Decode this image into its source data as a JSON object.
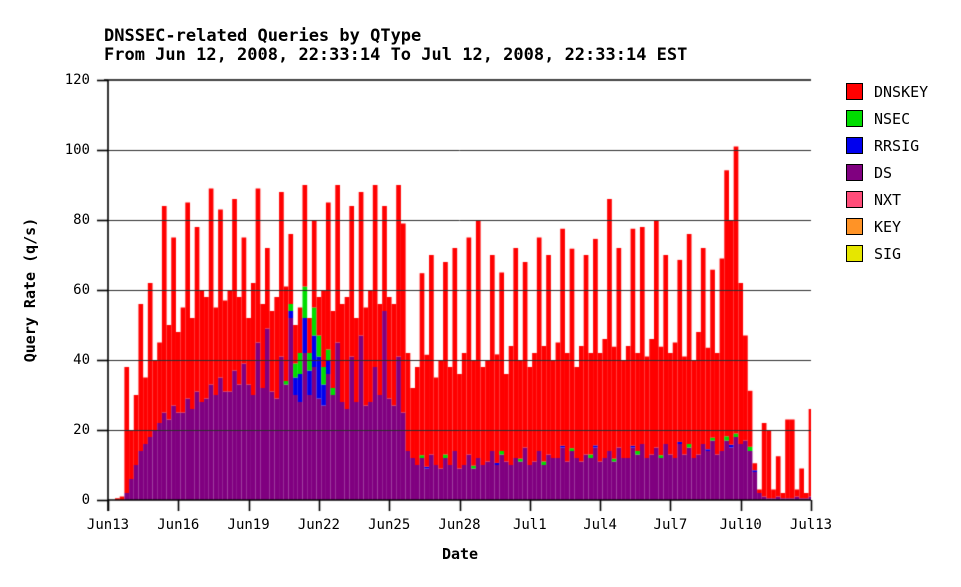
{
  "header": {
    "title": "DNSSEC-related Queries by QType",
    "subtitle": "From Jun 12, 2008, 22:33:14 To Jul 12, 2008, 22:33:14 EST"
  },
  "axes": {
    "x_label": "Date",
    "y_label": "Query Rate (q/s)"
  },
  "legend": {
    "position": "right",
    "items": [
      {
        "label": "DNSKEY",
        "color": "#ff0000"
      },
      {
        "label": "NSEC",
        "color": "#00dd00"
      },
      {
        "label": "RRSIG",
        "color": "#0000ee"
      },
      {
        "label": "DS",
        "color": "#800080"
      },
      {
        "label": "NXT",
        "color": "#ff4d79"
      },
      {
        "label": "KEY",
        "color": "#ff9326"
      },
      {
        "label": "SIG",
        "color": "#e6e600"
      }
    ]
  },
  "colors": {
    "background": "#ffffff",
    "axis": "#000000",
    "grid": "#2e2e2e",
    "text": "#000000"
  },
  "chart_data": {
    "type": "area",
    "stacked": true,
    "title": "DNSSEC-related Queries by QType",
    "subtitle": "From Jun 12, 2008, 22:33:14 To Jul 12, 2008, 22:33:14 EST",
    "xlabel": "Date",
    "ylabel": "Query Rate (q/s)",
    "ylim": [
      0,
      120
    ],
    "yticks": [
      0,
      20,
      40,
      60,
      80,
      100,
      120
    ],
    "grid": "horizontal",
    "legend_position": "right",
    "x_tick_labels": [
      "Jun13",
      "Jun16",
      "Jun19",
      "Jun22",
      "Jun25",
      "Jun28",
      "Jul1",
      "Jul4",
      "Jul7",
      "Jul10",
      "Jul13"
    ],
    "x_range_days": [
      0,
      30
    ],
    "samples_per_day": 5,
    "units": "queries per second",
    "stack_order_bottom_to_top": [
      "DS",
      "RRSIG",
      "NSEC",
      "DNSKEY"
    ],
    "zero_series": [
      "NXT",
      "KEY",
      "SIG"
    ],
    "series": [
      {
        "name": "DS",
        "color": "#800080",
        "values": [
          0,
          0,
          0,
          0,
          2,
          6,
          10,
          14,
          16,
          18,
          20,
          22,
          25,
          23,
          27,
          25,
          25,
          29,
          26,
          31,
          28,
          29,
          33,
          30,
          35,
          31,
          31,
          37,
          33,
          39,
          33,
          30,
          45,
          32,
          49,
          31,
          29,
          41,
          33,
          52,
          30,
          28,
          42,
          30,
          38,
          29,
          27,
          36,
          30,
          45,
          28,
          26,
          41,
          28,
          47,
          27,
          28,
          38,
          30,
          54,
          29,
          27,
          41,
          25,
          14,
          12,
          10,
          12,
          9,
          13,
          10,
          9,
          12,
          10,
          14,
          9,
          10,
          13,
          9,
          12,
          10,
          11,
          14,
          10,
          13,
          11,
          10,
          12,
          11,
          15,
          10,
          11,
          14,
          10,
          13,
          12,
          12,
          15,
          11,
          14,
          12,
          11,
          13,
          12,
          15,
          11,
          12,
          14,
          11,
          15,
          12,
          12,
          15,
          13,
          16,
          12,
          13,
          15,
          12,
          16,
          13,
          12,
          16,
          13,
          15,
          12,
          13,
          16,
          14,
          17,
          13,
          14,
          17,
          15,
          18,
          16,
          17,
          14,
          8,
          2,
          1,
          0.5,
          0.5,
          1,
          0.5,
          0.5,
          0.5,
          1,
          0.5,
          0.5,
          1
        ]
      },
      {
        "name": "RRSIG",
        "color": "#0000ee",
        "values": [
          0,
          0,
          0,
          0,
          0,
          0,
          0,
          0,
          0,
          0,
          0,
          0,
          0,
          0,
          0,
          0,
          0,
          0,
          0,
          0,
          0,
          0,
          0,
          0,
          0,
          0,
          0,
          0,
          0,
          0,
          0,
          0,
          0,
          0,
          0,
          0,
          0,
          0,
          0,
          2,
          5,
          8,
          10,
          7,
          9,
          12,
          6,
          4,
          0,
          0,
          0,
          0,
          0,
          0,
          0,
          0,
          0,
          0,
          0,
          0,
          0,
          0,
          0,
          0,
          0,
          0,
          0,
          0,
          0.5,
          0,
          0,
          0,
          0,
          0,
          0,
          0,
          0,
          0,
          0,
          0,
          0,
          0,
          0,
          0.6,
          0,
          0,
          0,
          0,
          0,
          0,
          0,
          0,
          0,
          0,
          0,
          0,
          0,
          0.5,
          0,
          0,
          0,
          0,
          0,
          0,
          0.6,
          0,
          0,
          0,
          0,
          0,
          0,
          0,
          0.5,
          0,
          0,
          0,
          0,
          0,
          0,
          0,
          0,
          0,
          0.6,
          0,
          0,
          0,
          0,
          0,
          0.5,
          0,
          0,
          0,
          0,
          0.8,
          0,
          0,
          0,
          0,
          0.5,
          0,
          0,
          0,
          0,
          0,
          0,
          0,
          0,
          0,
          0,
          0,
          0
        ]
      },
      {
        "name": "NSEC",
        "color": "#00dd00",
        "values": [
          0,
          0,
          0,
          0,
          0,
          0,
          0,
          0,
          0,
          0,
          0,
          0,
          0,
          0,
          0,
          0,
          0,
          0,
          0,
          0,
          0,
          0,
          0,
          0,
          0,
          0,
          0,
          0,
          0,
          0,
          0,
          0,
          0,
          0,
          0,
          0,
          0,
          0,
          1,
          2,
          4,
          6,
          9,
          5,
          8,
          6,
          5,
          3,
          2,
          0,
          0,
          0,
          0,
          0,
          0,
          0,
          0,
          0,
          0,
          0,
          0,
          0,
          0,
          0,
          0,
          0,
          0,
          0.8,
          0,
          0,
          0,
          0,
          1,
          0,
          0,
          0,
          0,
          0,
          0.8,
          0,
          0,
          0,
          0,
          0,
          1,
          0,
          0,
          0,
          0.8,
          0,
          0,
          0,
          0,
          1,
          0,
          0,
          0,
          0,
          0,
          0.8,
          0,
          0,
          0,
          1,
          0,
          0,
          0,
          0,
          0.8,
          0,
          0,
          0,
          0,
          1,
          0,
          0,
          0,
          0,
          0.8,
          0,
          0,
          0,
          0,
          0,
          1,
          0,
          0,
          0,
          0,
          0.8,
          0,
          0,
          1.2,
          0,
          1,
          0,
          0,
          1.2,
          0,
          0,
          0,
          0,
          0,
          0,
          0,
          0,
          0,
          0,
          0,
          0,
          0
        ]
      },
      {
        "name": "DNSKEY",
        "color": "#ff0000",
        "values": [
          0,
          0,
          0.5,
          1,
          36,
          14,
          20,
          42,
          19,
          44,
          20,
          23,
          59,
          27,
          48,
          23,
          30,
          56,
          26,
          47,
          32,
          29,
          56,
          25,
          48,
          26,
          29,
          49,
          25,
          36,
          19,
          32,
          44,
          24,
          23,
          23,
          29,
          47,
          27,
          20,
          11,
          13,
          29,
          10,
          25,
          11,
          22,
          42,
          22,
          45,
          28,
          32,
          43,
          24,
          41,
          28,
          32,
          52,
          26,
          30,
          29,
          29,
          49,
          54,
          28,
          20,
          28,
          52,
          32,
          57,
          25,
          31,
          55,
          28,
          58,
          27,
          32,
          62,
          30,
          68,
          28,
          29,
          56,
          31,
          51,
          25,
          34,
          60,
          28,
          53,
          28,
          31,
          61,
          33,
          57,
          28,
          33,
          62,
          31,
          57,
          26,
          33,
          57,
          29,
          59,
          31,
          34,
          72,
          32,
          57,
          28,
          32,
          62,
          28,
          62,
          29,
          33,
          65,
          31,
          54,
          29,
          33,
          52,
          28,
          60,
          28,
          35,
          56,
          29,
          48,
          29,
          55,
          76,
          64,
          82,
          46,
          30,
          16,
          2,
          1,
          21,
          19.5,
          2.5,
          11.5,
          1.5,
          22.5,
          22.5,
          2,
          8.5,
          1.5,
          25
        ]
      }
    ]
  }
}
